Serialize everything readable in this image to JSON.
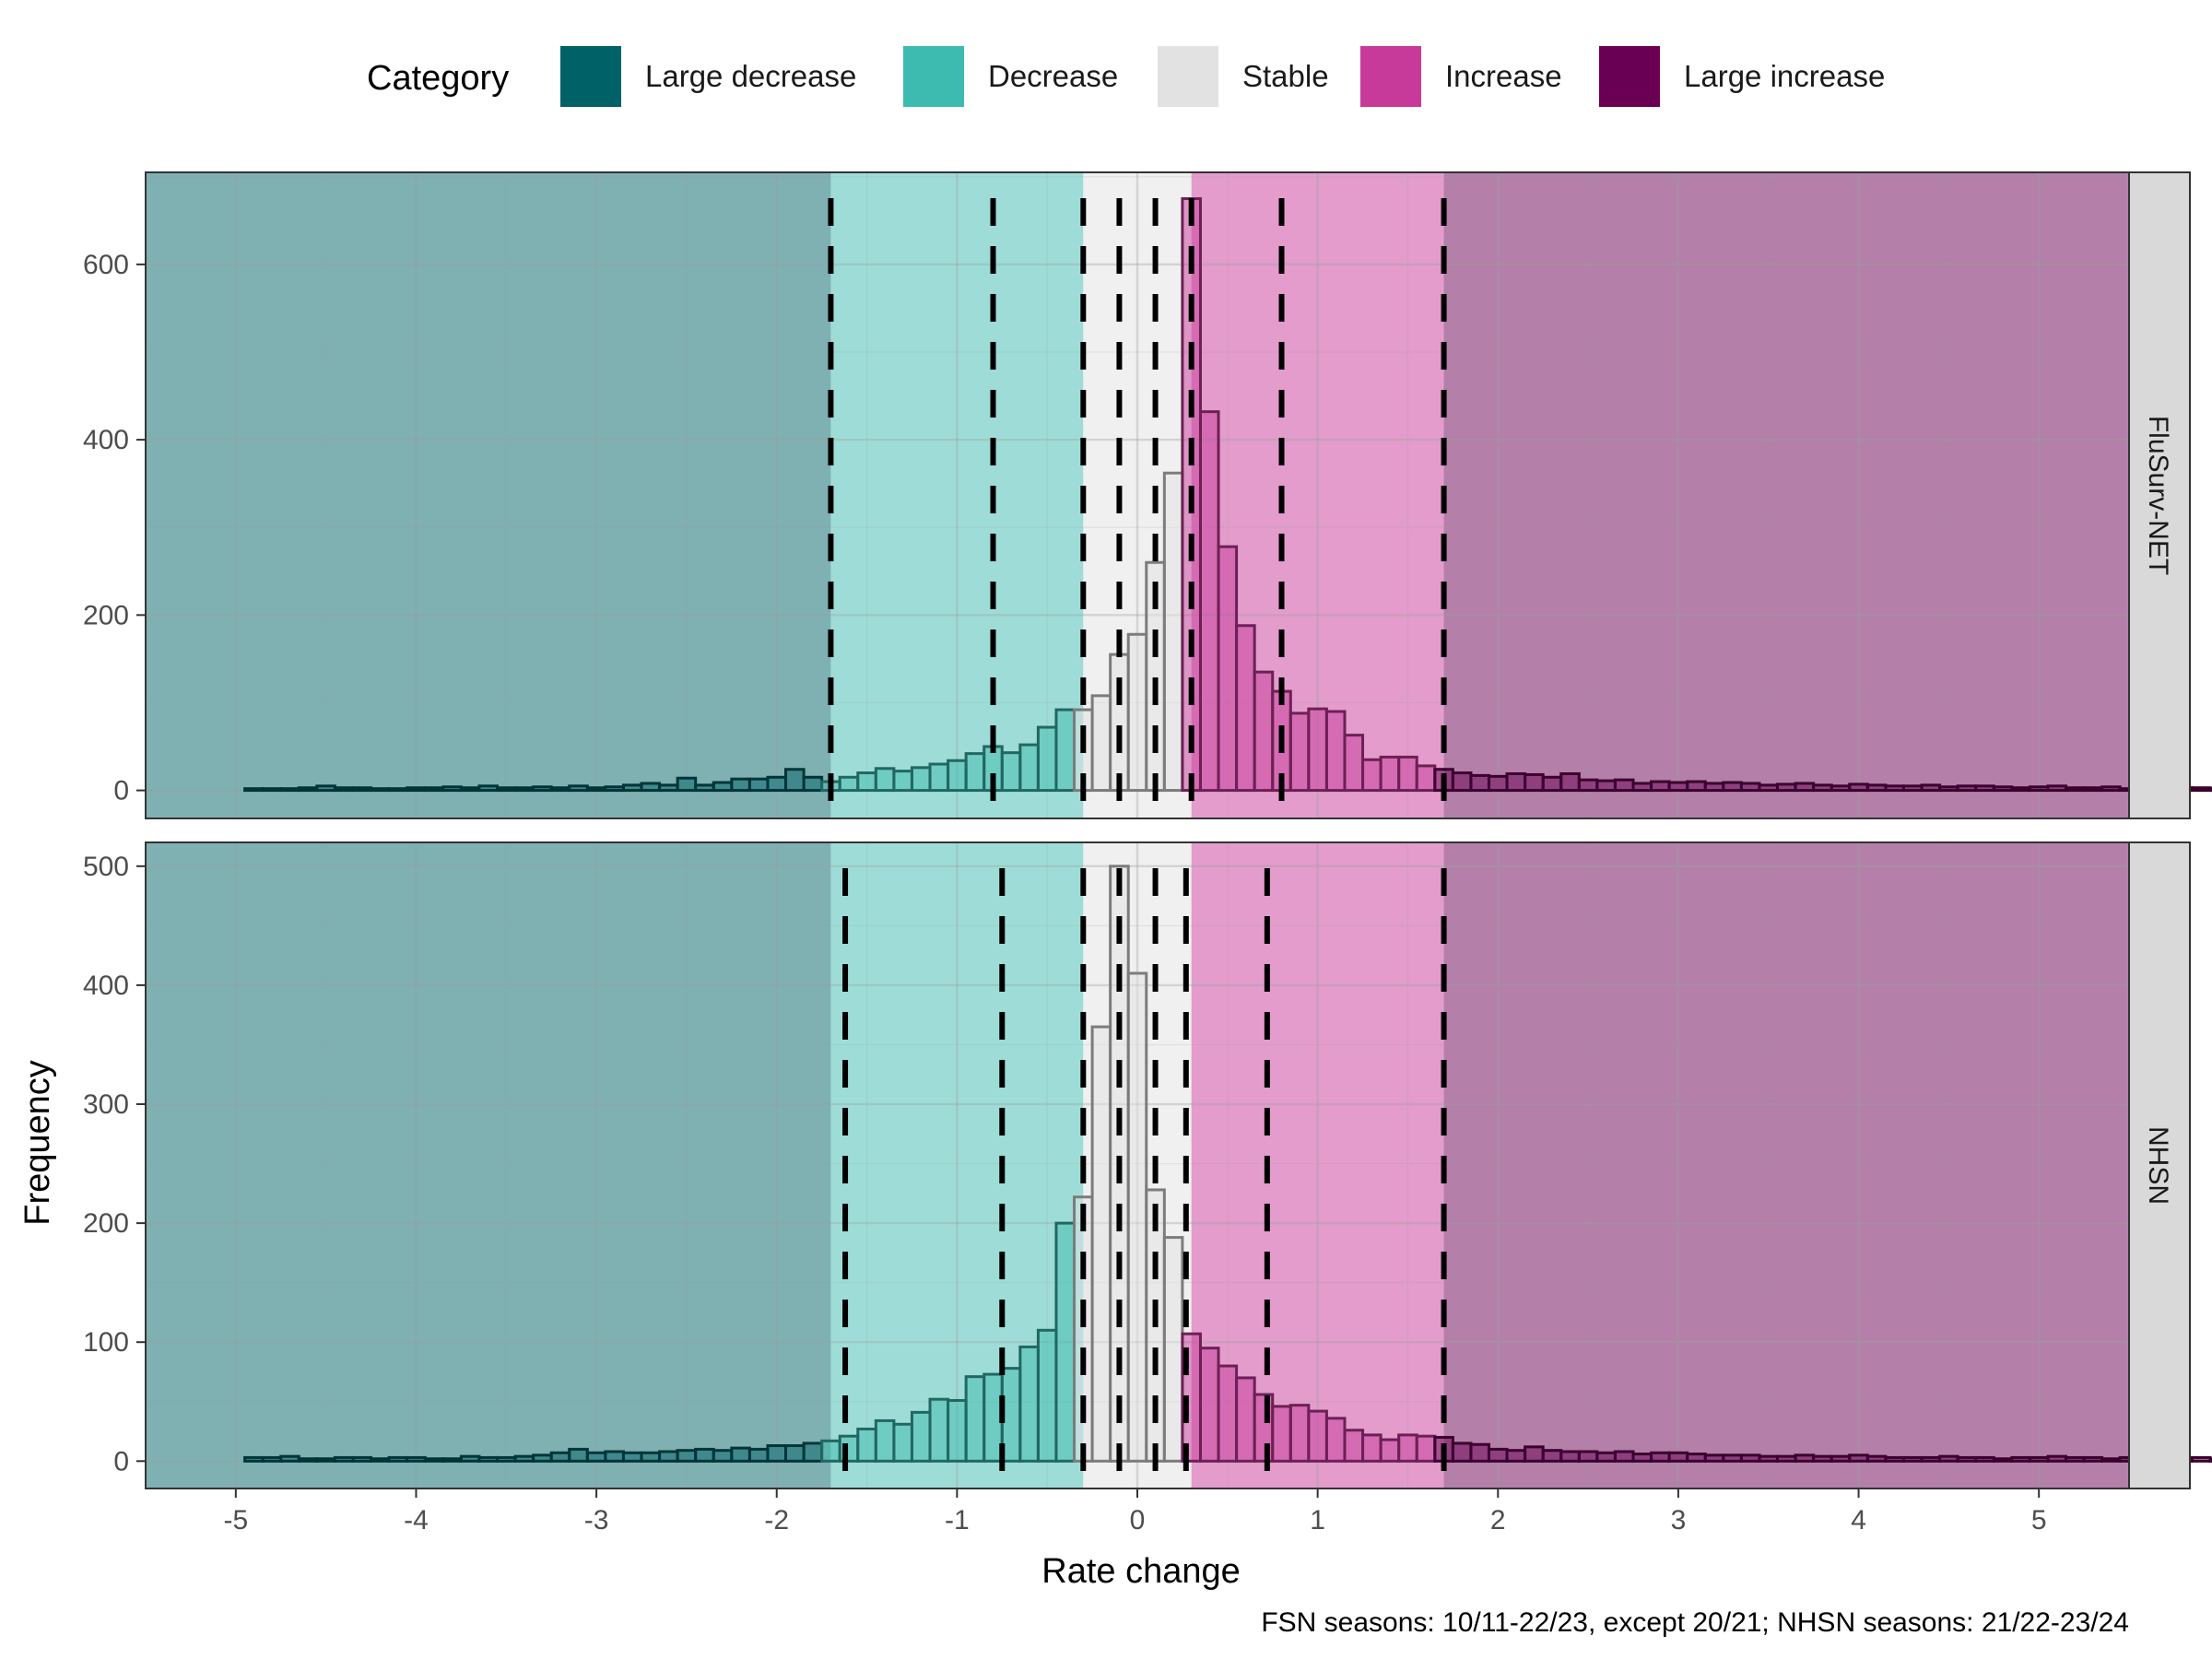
{
  "chart_data": {
    "type": "histogram",
    "xlabel": "Rate change",
    "ylabel": "Frequency",
    "caption": "FSN seasons: 10/11-22/23, except 20/21; NHSN seasons: 21/22-23/24",
    "x_range": [
      -5.5,
      5.5
    ],
    "x_ticks": [
      -5,
      -4,
      -3,
      -2,
      -1,
      0,
      1,
      2,
      3,
      4,
      5
    ],
    "bin_width": 0.1,
    "bin_start": -4.95,
    "legend": {
      "title": "Category",
      "position": "top",
      "items": [
        {
          "label": "Large decrease",
          "color": "#006166"
        },
        {
          "label": "Decrease",
          "color": "#3DBBB0"
        },
        {
          "label": "Stable",
          "color": "#E2E2E2"
        },
        {
          "label": "Increase",
          "color": "#C73A99"
        },
        {
          "label": "Large increase",
          "color": "#6A0054"
        }
      ]
    },
    "background_bands": [
      {
        "category": "Large decrease",
        "from": -5.5,
        "to": -1.7,
        "color": "#006166"
      },
      {
        "category": "Decrease",
        "from": -1.7,
        "to": -0.3,
        "color": "#3DBBB0"
      },
      {
        "category": "Stable",
        "from": -0.3,
        "to": 0.3,
        "color": "#E2E2E2"
      },
      {
        "category": "Increase",
        "from": 0.3,
        "to": 1.7,
        "color": "#C73A99"
      },
      {
        "category": "Large increase",
        "from": 1.7,
        "to": 5.5,
        "color": "#6A0054"
      }
    ],
    "panels": [
      {
        "name": "FluSurv-NET",
        "y_range": [
          -32,
          705
        ],
        "y_ticks": [
          0,
          200,
          400,
          600
        ],
        "cutoff_lines": [
          -1.7,
          -0.8,
          -0.3,
          -0.1,
          0.1,
          0.3,
          0.8,
          1.7
        ],
        "values": [
          2,
          2,
          2,
          3,
          5,
          3,
          3,
          2,
          2,
          3,
          3,
          4,
          3,
          5,
          3,
          3,
          4,
          3,
          5,
          3,
          4,
          6,
          8,
          6,
          14,
          6,
          9,
          13,
          13,
          15,
          24,
          15,
          10,
          15,
          20,
          25,
          22,
          26,
          30,
          34,
          42,
          50,
          43,
          52,
          72,
          92,
          92,
          108,
          155,
          178,
          260,
          362,
          675,
          432,
          278,
          188,
          135,
          113,
          88,
          93,
          90,
          63,
          35,
          38,
          38,
          28,
          24,
          20,
          17,
          16,
          19,
          18,
          15,
          19,
          12,
          11,
          12,
          8,
          10,
          9,
          10,
          8,
          9,
          8,
          6,
          7,
          8,
          6,
          5,
          7,
          6,
          5,
          5,
          6,
          4,
          5,
          5,
          4,
          3,
          4,
          5,
          3,
          3,
          4,
          2,
          3,
          4,
          3,
          3,
          2
        ]
      },
      {
        "name": "NHSN",
        "y_range": [
          -23,
          520
        ],
        "y_ticks": [
          0,
          100,
          200,
          300,
          400,
          500
        ],
        "cutoff_lines": [
          -1.62,
          -0.75,
          -0.3,
          -0.1,
          0.1,
          0.27,
          0.72,
          1.7
        ],
        "values": [
          3,
          3,
          4,
          2,
          2,
          3,
          3,
          2,
          3,
          3,
          2,
          2,
          4,
          3,
          3,
          4,
          5,
          7,
          10,
          7,
          8,
          7,
          7,
          8,
          9,
          10,
          9,
          11,
          10,
          13,
          13,
          15,
          17,
          21,
          27,
          34,
          31,
          41,
          52,
          51,
          71,
          73,
          78,
          96,
          110,
          200,
          222,
          365,
          500,
          410,
          228,
          188,
          107,
          95,
          80,
          70,
          56,
          46,
          47,
          42,
          36,
          26,
          22,
          18,
          22,
          21,
          20,
          15,
          14,
          10,
          9,
          12,
          9,
          8,
          8,
          7,
          8,
          6,
          7,
          7,
          6,
          5,
          5,
          5,
          4,
          4,
          5,
          4,
          4,
          5,
          4,
          3,
          3,
          3,
          4,
          3,
          3,
          2,
          3,
          3,
          4,
          3,
          3,
          2,
          3,
          2,
          3,
          2,
          3,
          2
        ]
      }
    ]
  }
}
